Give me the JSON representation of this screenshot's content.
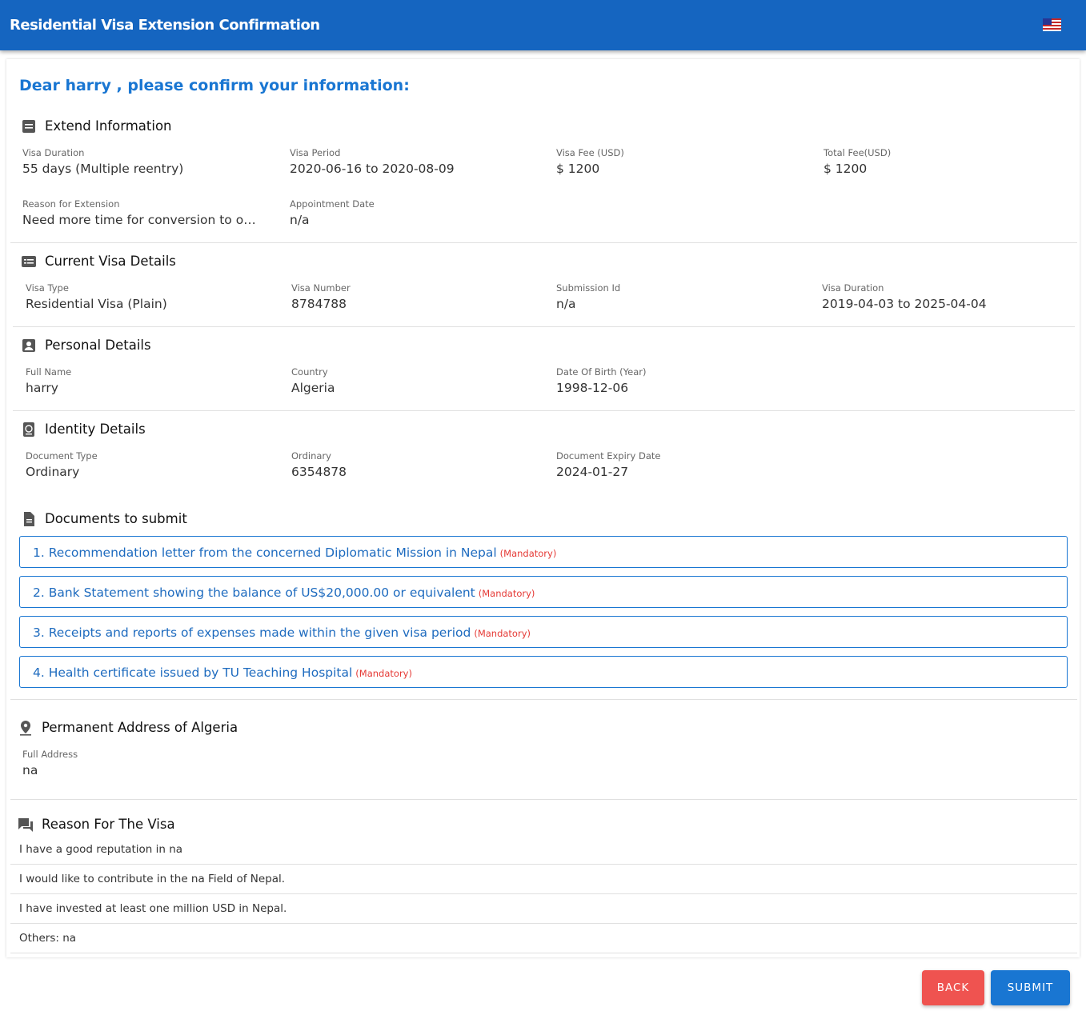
{
  "header": {
    "title": "Residential Visa Extension Confirmation"
  },
  "greeting": "Dear harry , please confirm your information:",
  "sections": [
    {
      "title": "Extend Information",
      "fields": [
        {
          "label": "Visa Duration",
          "value": "55 days (Multiple reentry)"
        },
        {
          "label": "Visa Period",
          "value": "2020-06-16 to 2020-08-09"
        },
        {
          "label": "Visa Fee (USD)",
          "value": "$ 1200"
        },
        {
          "label": "Total Fee(USD)",
          "value": "$ 1200"
        },
        {
          "label": "Reason for Extension",
          "value": "Need more time for conversion to o…"
        },
        {
          "label": "Appointment Date",
          "value": "n/a"
        }
      ]
    },
    {
      "title": "Current Visa Details",
      "fields": [
        {
          "label": "Visa Type",
          "value": "Residential Visa (Plain)"
        },
        {
          "label": "Visa Number",
          "value": "8784788"
        },
        {
          "label": "Submission Id",
          "value": "n/a"
        },
        {
          "label": "Visa Duration",
          "value": "2019-04-03 to 2025-04-04"
        }
      ]
    },
    {
      "title": "Personal Details",
      "fields": [
        {
          "label": "Full Name",
          "value": "harry"
        },
        {
          "label": "Country",
          "value": "Algeria"
        },
        {
          "label": "Date Of Birth (Year)",
          "value": "1998-12-06"
        }
      ]
    },
    {
      "title": "Identity Details",
      "fields": [
        {
          "label": "Document Type",
          "value": "Ordinary"
        },
        {
          "label": "Ordinary",
          "value": "6354878"
        },
        {
          "label": "Document Expiry Date",
          "value": "2024-01-27"
        }
      ]
    }
  ],
  "documents": {
    "title": "Documents to submit",
    "items": [
      {
        "text": "1. Recommendation letter from the concerned Diplomatic Mission in Nepal",
        "tag": "(Mandatory)"
      },
      {
        "text": "2. Bank Statement showing the balance of US$20,000.00 or equivalent",
        "tag": "(Mandatory)"
      },
      {
        "text": "3. Receipts and reports of expenses made within the given visa period",
        "tag": "(Mandatory)"
      },
      {
        "text": "4. Health certificate issued by TU Teaching Hospital",
        "tag": "(Mandatory)"
      }
    ]
  },
  "address": {
    "title": "Permanent Address of Algeria",
    "label": "Full Address",
    "value": "na"
  },
  "reasons": {
    "title": "Reason For The Visa",
    "items": [
      "I have a good reputation in na",
      "I would like to contribute in the na Field of Nepal.",
      "I have invested at least one million USD in Nepal.",
      "Others: na"
    ]
  },
  "buttons": {
    "back": "BACK",
    "submit": "SUBMIT"
  }
}
